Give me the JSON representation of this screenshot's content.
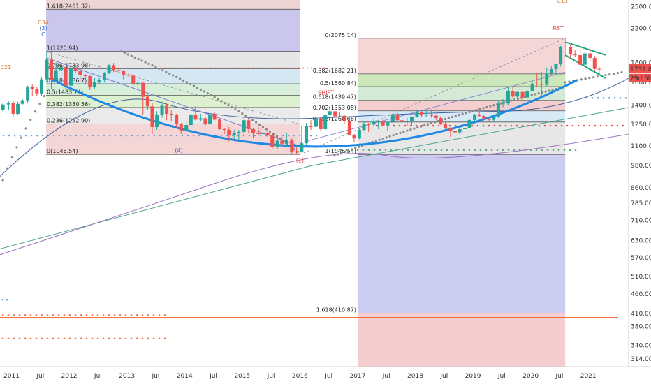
{
  "chart_data": {
    "type": "candlestick",
    "y_axis": {
      "scale": "log",
      "range": [
        300,
        2600
      ],
      "ticks": [
        "2500.00",
        "2200.00",
        "1800.00",
        "1600.00",
        "1400.00",
        "1250.00",
        "1100.00",
        "980.00",
        "860.00",
        "785.00",
        "710.00",
        "630.00",
        "570.00",
        "510.00",
        "460.00",
        "410.00",
        "380.00",
        "340.00",
        "314.00"
      ],
      "tick_values": [
        2500,
        2200,
        1800,
        1600,
        1400,
        1250,
        1100,
        980,
        860,
        785,
        710,
        630,
        570,
        510,
        460,
        410,
        380,
        340,
        314
      ]
    },
    "x_axis": {
      "ticks": [
        "2011",
        "Jul",
        "2012",
        "Jul",
        "2013",
        "Jul",
        "2014",
        "Jul",
        "2015",
        "Jul",
        "2016",
        "Jul",
        "2017",
        "Jul",
        "2018",
        "Jul",
        "2019",
        "Jul",
        "2020",
        "Jul",
        "2021"
      ],
      "tick_dates": [
        2011.0,
        2011.5,
        2012.0,
        2012.5,
        2013.0,
        2013.5,
        2014.0,
        2014.5,
        2015.0,
        2015.5,
        2016.0,
        2016.5,
        2017.0,
        2017.5,
        2018.0,
        2018.5,
        2019.0,
        2019.5,
        2020.0,
        2020.5,
        2021.0
      ],
      "range": [
        2010.8,
        2021.7
      ]
    },
    "price_labels": {
      "last": "1731.89",
      "countdown": "29d 5h"
    },
    "candles": [
      {
        "t": 2010.85,
        "o": 1360,
        "h": 1420,
        "l": 1340,
        "c": 1405
      },
      {
        "t": 2010.95,
        "o": 1405,
        "h": 1430,
        "l": 1360,
        "c": 1420
      },
      {
        "t": 2011.03,
        "o": 1420,
        "h": 1440,
        "l": 1310,
        "c": 1330
      },
      {
        "t": 2011.11,
        "o": 1330,
        "h": 1430,
        "l": 1320,
        "c": 1410
      },
      {
        "t": 2011.19,
        "o": 1410,
        "h": 1450,
        "l": 1400,
        "c": 1440
      },
      {
        "t": 2011.28,
        "o": 1440,
        "h": 1570,
        "l": 1420,
        "c": 1560
      },
      {
        "t": 2011.36,
        "o": 1560,
        "h": 1580,
        "l": 1480,
        "c": 1540
      },
      {
        "t": 2011.44,
        "o": 1540,
        "h": 1560,
        "l": 1480,
        "c": 1500
      },
      {
        "t": 2011.52,
        "o": 1500,
        "h": 1650,
        "l": 1480,
        "c": 1630
      },
      {
        "t": 2011.61,
        "o": 1630,
        "h": 1920,
        "l": 1600,
        "c": 1830
      },
      {
        "t": 2011.69,
        "o": 1830,
        "h": 1900,
        "l": 1540,
        "c": 1620
      },
      {
        "t": 2011.77,
        "o": 1620,
        "h": 1800,
        "l": 1600,
        "c": 1720
      },
      {
        "t": 2011.86,
        "o": 1720,
        "h": 1800,
        "l": 1670,
        "c": 1750
      },
      {
        "t": 2011.94,
        "o": 1750,
        "h": 1760,
        "l": 1530,
        "c": 1570
      },
      {
        "t": 2012.03,
        "o": 1570,
        "h": 1760,
        "l": 1540,
        "c": 1740
      },
      {
        "t": 2012.11,
        "o": 1740,
        "h": 1790,
        "l": 1690,
        "c": 1710
      },
      {
        "t": 2012.19,
        "o": 1710,
        "h": 1720,
        "l": 1610,
        "c": 1670
      },
      {
        "t": 2012.28,
        "o": 1670,
        "h": 1680,
        "l": 1630,
        "c": 1660
      },
      {
        "t": 2012.36,
        "o": 1660,
        "h": 1670,
        "l": 1530,
        "c": 1560
      },
      {
        "t": 2012.44,
        "o": 1560,
        "h": 1640,
        "l": 1540,
        "c": 1600
      },
      {
        "t": 2012.52,
        "o": 1600,
        "h": 1640,
        "l": 1580,
        "c": 1620
      },
      {
        "t": 2012.61,
        "o": 1620,
        "h": 1700,
        "l": 1600,
        "c": 1690
      },
      {
        "t": 2012.69,
        "o": 1690,
        "h": 1790,
        "l": 1680,
        "c": 1770
      },
      {
        "t": 2012.77,
        "o": 1770,
        "h": 1795,
        "l": 1700,
        "c": 1720
      },
      {
        "t": 2012.86,
        "o": 1720,
        "h": 1750,
        "l": 1690,
        "c": 1710
      },
      {
        "t": 2012.94,
        "o": 1710,
        "h": 1720,
        "l": 1630,
        "c": 1675
      },
      {
        "t": 2013.03,
        "o": 1675,
        "h": 1690,
        "l": 1650,
        "c": 1665
      },
      {
        "t": 2013.11,
        "o": 1665,
        "h": 1680,
        "l": 1560,
        "c": 1580
      },
      {
        "t": 2013.19,
        "o": 1580,
        "h": 1620,
        "l": 1540,
        "c": 1595
      },
      {
        "t": 2013.28,
        "o": 1595,
        "h": 1600,
        "l": 1320,
        "c": 1470
      },
      {
        "t": 2013.36,
        "o": 1470,
        "h": 1490,
        "l": 1360,
        "c": 1390
      },
      {
        "t": 2013.44,
        "o": 1390,
        "h": 1420,
        "l": 1180,
        "c": 1230
      },
      {
        "t": 2013.52,
        "o": 1230,
        "h": 1350,
        "l": 1210,
        "c": 1320
      },
      {
        "t": 2013.61,
        "o": 1320,
        "h": 1430,
        "l": 1300,
        "c": 1395
      },
      {
        "t": 2013.69,
        "o": 1395,
        "h": 1420,
        "l": 1280,
        "c": 1330
      },
      {
        "t": 2013.77,
        "o": 1330,
        "h": 1360,
        "l": 1270,
        "c": 1325
      },
      {
        "t": 2013.86,
        "o": 1325,
        "h": 1330,
        "l": 1220,
        "c": 1250
      },
      {
        "t": 2013.94,
        "o": 1250,
        "h": 1260,
        "l": 1180,
        "c": 1205
      },
      {
        "t": 2014.03,
        "o": 1205,
        "h": 1270,
        "l": 1200,
        "c": 1245
      },
      {
        "t": 2014.11,
        "o": 1245,
        "h": 1330,
        "l": 1240,
        "c": 1320
      },
      {
        "t": 2014.19,
        "o": 1320,
        "h": 1390,
        "l": 1280,
        "c": 1285
      },
      {
        "t": 2014.28,
        "o": 1285,
        "h": 1330,
        "l": 1270,
        "c": 1295
      },
      {
        "t": 2014.36,
        "o": 1295,
        "h": 1310,
        "l": 1240,
        "c": 1250
      },
      {
        "t": 2014.44,
        "o": 1250,
        "h": 1330,
        "l": 1240,
        "c": 1320
      },
      {
        "t": 2014.52,
        "o": 1320,
        "h": 1340,
        "l": 1280,
        "c": 1285
      },
      {
        "t": 2014.61,
        "o": 1285,
        "h": 1290,
        "l": 1210,
        "c": 1215
      },
      {
        "t": 2014.69,
        "o": 1215,
        "h": 1220,
        "l": 1180,
        "c": 1210
      },
      {
        "t": 2014.77,
        "o": 1210,
        "h": 1230,
        "l": 1130,
        "c": 1170
      },
      {
        "t": 2014.86,
        "o": 1170,
        "h": 1210,
        "l": 1140,
        "c": 1185
      },
      {
        "t": 2014.94,
        "o": 1185,
        "h": 1210,
        "l": 1140,
        "c": 1195
      },
      {
        "t": 2015.03,
        "o": 1195,
        "h": 1300,
        "l": 1170,
        "c": 1280
      },
      {
        "t": 2015.11,
        "o": 1280,
        "h": 1290,
        "l": 1190,
        "c": 1215
      },
      {
        "t": 2015.19,
        "o": 1215,
        "h": 1220,
        "l": 1150,
        "c": 1185
      },
      {
        "t": 2015.28,
        "o": 1185,
        "h": 1230,
        "l": 1170,
        "c": 1180
      },
      {
        "t": 2015.36,
        "o": 1180,
        "h": 1230,
        "l": 1170,
        "c": 1190
      },
      {
        "t": 2015.44,
        "o": 1190,
        "h": 1205,
        "l": 1160,
        "c": 1170
      },
      {
        "t": 2015.52,
        "o": 1170,
        "h": 1175,
        "l": 1080,
        "c": 1095
      },
      {
        "t": 2015.61,
        "o": 1095,
        "h": 1170,
        "l": 1080,
        "c": 1135
      },
      {
        "t": 2015.69,
        "o": 1135,
        "h": 1160,
        "l": 1100,
        "c": 1115
      },
      {
        "t": 2015.77,
        "o": 1115,
        "h": 1190,
        "l": 1100,
        "c": 1140
      },
      {
        "t": 2015.86,
        "o": 1140,
        "h": 1150,
        "l": 1050,
        "c": 1065
      },
      {
        "t": 2015.94,
        "o": 1065,
        "h": 1090,
        "l": 1047,
        "c": 1060
      },
      {
        "t": 2016.03,
        "o": 1060,
        "h": 1240,
        "l": 1060,
        "c": 1118
      },
      {
        "t": 2016.11,
        "o": 1118,
        "h": 1260,
        "l": 1110,
        "c": 1235
      },
      {
        "t": 2016.19,
        "o": 1235,
        "h": 1280,
        "l": 1210,
        "c": 1232
      },
      {
        "t": 2016.28,
        "o": 1232,
        "h": 1300,
        "l": 1210,
        "c": 1290
      },
      {
        "t": 2016.36,
        "o": 1290,
        "h": 1305,
        "l": 1200,
        "c": 1215
      },
      {
        "t": 2016.44,
        "o": 1215,
        "h": 1325,
        "l": 1200,
        "c": 1320
      },
      {
        "t": 2016.52,
        "o": 1320,
        "h": 1375,
        "l": 1310,
        "c": 1350
      },
      {
        "t": 2016.61,
        "o": 1350,
        "h": 1350,
        "l": 1300,
        "c": 1310
      },
      {
        "t": 2016.69,
        "o": 1310,
        "h": 1340,
        "l": 1305,
        "c": 1315
      },
      {
        "t": 2016.77,
        "o": 1315,
        "h": 1320,
        "l": 1250,
        "c": 1275
      },
      {
        "t": 2016.86,
        "o": 1275,
        "h": 1305,
        "l": 1170,
        "c": 1175
      },
      {
        "t": 2016.94,
        "o": 1175,
        "h": 1180,
        "l": 1125,
        "c": 1150
      },
      {
        "t": 2017.03,
        "o": 1150,
        "h": 1220,
        "l": 1145,
        "c": 1210
      },
      {
        "t": 2017.11,
        "o": 1210,
        "h": 1265,
        "l": 1200,
        "c": 1250
      },
      {
        "t": 2017.19,
        "o": 1250,
        "h": 1260,
        "l": 1195,
        "c": 1248
      },
      {
        "t": 2017.28,
        "o": 1248,
        "h": 1295,
        "l": 1240,
        "c": 1268
      },
      {
        "t": 2017.36,
        "o": 1268,
        "h": 1270,
        "l": 1215,
        "c": 1270
      },
      {
        "t": 2017.44,
        "o": 1270,
        "h": 1295,
        "l": 1240,
        "c": 1242
      },
      {
        "t": 2017.52,
        "o": 1242,
        "h": 1270,
        "l": 1205,
        "c": 1268
      },
      {
        "t": 2017.61,
        "o": 1268,
        "h": 1330,
        "l": 1260,
        "c": 1322
      },
      {
        "t": 2017.69,
        "o": 1322,
        "h": 1357,
        "l": 1270,
        "c": 1280
      },
      {
        "t": 2017.77,
        "o": 1280,
        "h": 1300,
        "l": 1260,
        "c": 1270
      },
      {
        "t": 2017.86,
        "o": 1270,
        "h": 1298,
        "l": 1236,
        "c": 1275
      },
      {
        "t": 2017.94,
        "o": 1275,
        "h": 1310,
        "l": 1240,
        "c": 1303
      },
      {
        "t": 2018.03,
        "o": 1303,
        "h": 1365,
        "l": 1300,
        "c": 1343
      },
      {
        "t": 2018.11,
        "o": 1343,
        "h": 1360,
        "l": 1305,
        "c": 1318
      },
      {
        "t": 2018.19,
        "o": 1318,
        "h": 1355,
        "l": 1305,
        "c": 1325
      },
      {
        "t": 2018.28,
        "o": 1325,
        "h": 1365,
        "l": 1300,
        "c": 1315
      },
      {
        "t": 2018.36,
        "o": 1315,
        "h": 1325,
        "l": 1280,
        "c": 1298
      },
      {
        "t": 2018.44,
        "o": 1298,
        "h": 1310,
        "l": 1245,
        "c": 1250
      },
      {
        "t": 2018.52,
        "o": 1250,
        "h": 1265,
        "l": 1210,
        "c": 1223
      },
      {
        "t": 2018.61,
        "o": 1223,
        "h": 1230,
        "l": 1160,
        "c": 1200
      },
      {
        "t": 2018.69,
        "o": 1200,
        "h": 1215,
        "l": 1180,
        "c": 1192
      },
      {
        "t": 2018.77,
        "o": 1192,
        "h": 1245,
        "l": 1182,
        "c": 1215
      },
      {
        "t": 2018.86,
        "o": 1215,
        "h": 1240,
        "l": 1195,
        "c": 1222
      },
      {
        "t": 2018.94,
        "o": 1222,
        "h": 1285,
        "l": 1220,
        "c": 1282
      },
      {
        "t": 2019.03,
        "o": 1282,
        "h": 1330,
        "l": 1275,
        "c": 1320
      },
      {
        "t": 2019.11,
        "o": 1320,
        "h": 1347,
        "l": 1305,
        "c": 1313
      },
      {
        "t": 2019.19,
        "o": 1313,
        "h": 1320,
        "l": 1280,
        "c": 1292
      },
      {
        "t": 2019.28,
        "o": 1292,
        "h": 1300,
        "l": 1267,
        "c": 1283
      },
      {
        "t": 2019.36,
        "o": 1283,
        "h": 1305,
        "l": 1266,
        "c": 1305
      },
      {
        "t": 2019.44,
        "o": 1305,
        "h": 1440,
        "l": 1300,
        "c": 1409
      },
      {
        "t": 2019.52,
        "o": 1409,
        "h": 1450,
        "l": 1382,
        "c": 1413
      },
      {
        "t": 2019.61,
        "o": 1413,
        "h": 1555,
        "l": 1400,
        "c": 1520
      },
      {
        "t": 2019.69,
        "o": 1520,
        "h": 1557,
        "l": 1460,
        "c": 1472
      },
      {
        "t": 2019.77,
        "o": 1472,
        "h": 1520,
        "l": 1460,
        "c": 1512
      },
      {
        "t": 2019.86,
        "o": 1512,
        "h": 1516,
        "l": 1445,
        "c": 1464
      },
      {
        "t": 2019.94,
        "o": 1464,
        "h": 1525,
        "l": 1455,
        "c": 1517
      },
      {
        "t": 2020.03,
        "o": 1517,
        "h": 1611,
        "l": 1517,
        "c": 1587
      },
      {
        "t": 2020.11,
        "o": 1587,
        "h": 1689,
        "l": 1562,
        "c": 1585
      },
      {
        "t": 2020.19,
        "o": 1585,
        "h": 1703,
        "l": 1451,
        "c": 1577
      },
      {
        "t": 2020.28,
        "o": 1577,
        "h": 1747,
        "l": 1568,
        "c": 1686
      },
      {
        "t": 2020.36,
        "o": 1686,
        "h": 1765,
        "l": 1670,
        "c": 1730
      },
      {
        "t": 2020.44,
        "o": 1730,
        "h": 1789,
        "l": 1670,
        "c": 1781
      },
      {
        "t": 2020.52,
        "o": 1781,
        "h": 1984,
        "l": 1757,
        "c": 1975
      },
      {
        "t": 2020.61,
        "o": 1975,
        "h": 2075,
        "l": 1863,
        "c": 1967
      },
      {
        "t": 2020.69,
        "o": 1967,
        "h": 1992,
        "l": 1848,
        "c": 1886
      },
      {
        "t": 2020.77,
        "o": 1886,
        "h": 1933,
        "l": 1860,
        "c": 1878
      },
      {
        "t": 2020.86,
        "o": 1878,
        "h": 1965,
        "l": 1764,
        "c": 1776
      },
      {
        "t": 2020.94,
        "o": 1776,
        "h": 1906,
        "l": 1775,
        "c": 1898
      },
      {
        "t": 2021.03,
        "o": 1898,
        "h": 1959,
        "l": 1803,
        "c": 1847
      },
      {
        "t": 2021.11,
        "o": 1847,
        "h": 1871,
        "l": 1717,
        "c": 1733
      },
      {
        "t": 2021.19,
        "o": 1733,
        "h": 1755,
        "l": 1677,
        "c": 1731
      }
    ],
    "fib_left": {
      "x_start": 2011.6,
      "x_end": 2016.0,
      "levels": [
        {
          "label": "1.618(2461.32)",
          "value": 2461.32
        },
        {
          "label": "1(1920.94)",
          "value": 1920.94
        },
        {
          "label": "0.786(1733.98)",
          "value": 1733.98
        },
        {
          "label": "0.618(1586.7)",
          "value": 1586.7
        },
        {
          "label": "0.5(1483.74)",
          "value": 1483.74
        },
        {
          "label": "0.382(1380.56)",
          "value": 1380.56
        },
        {
          "label": "0.236(1252.90)",
          "value": 1252.9
        },
        {
          "label": "0(1046.54)",
          "value": 1046.54
        }
      ]
    },
    "fib_right": {
      "x_start": 2017.0,
      "x_end": 2020.6,
      "levels": [
        {
          "label": "0(2075.14)",
          "value": 2075.14
        },
        {
          "label": "0.382(1682.21)",
          "value": 1682.21
        },
        {
          "label": "0.5(1560.84)",
          "value": 1560.84
        },
        {
          "label": "0.618(1439.47)",
          "value": 1439.47
        },
        {
          "label": "0.702(1353.08)",
          "value": 1353.08
        },
        {
          "label": "0.786(1266.66)",
          "value": 1266.66
        },
        {
          "label": "1(1046.54)",
          "value": 1046.54
        },
        {
          "label": "1.618(410.87)",
          "value": 410.87
        }
      ]
    },
    "annotations": [
      {
        "text": "SHIFT",
        "t": 2016.45,
        "v": 1490,
        "color": "#e04040"
      },
      {
        "text": "RST",
        "t": 2020.48,
        "v": 2180,
        "color": "#e04040"
      },
      {
        "text": "C13",
        "t": 2020.55,
        "v": 2560,
        "color": "#e0802a"
      },
      {
        "text": "C34",
        "t": 2011.55,
        "v": 2250,
        "color": "#e0802a"
      },
      {
        "text": "C21",
        "t": 2010.9,
        "v": 1730,
        "color": "#e0802a"
      },
      {
        "text": "(1)",
        "t": 2016.0,
        "v": 1000,
        "color": "#e04040"
      },
      {
        "text": "(4)",
        "t": 2013.9,
        "v": 1060,
        "color": "#3a6bd1"
      },
      {
        "text": "(3)",
        "t": 2011.55,
        "v": 2180,
        "color": "#3a6bd1"
      },
      {
        "text": "C",
        "t": 2011.55,
        "v": 2100,
        "color": "#3a6bd1"
      }
    ]
  }
}
